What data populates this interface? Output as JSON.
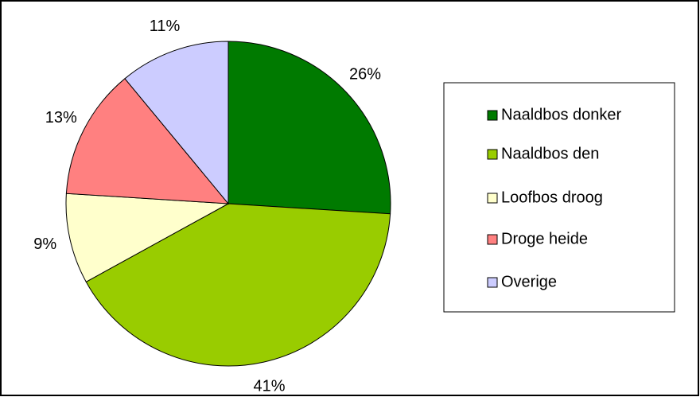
{
  "chart_data": {
    "type": "pie",
    "categories": [
      "Naaldbos donker",
      "Naaldbos den",
      "Loofbos droog",
      "Droge heide",
      "Overige"
    ],
    "values": [
      26,
      41,
      9,
      13,
      11
    ],
    "value_labels": [
      "26%",
      "41%",
      "9%",
      "13%",
      "11%"
    ],
    "colors": [
      "#007a00",
      "#99cc00",
      "#ffffcc",
      "#ff8080",
      "#ccccff"
    ],
    "legend": "right"
  }
}
